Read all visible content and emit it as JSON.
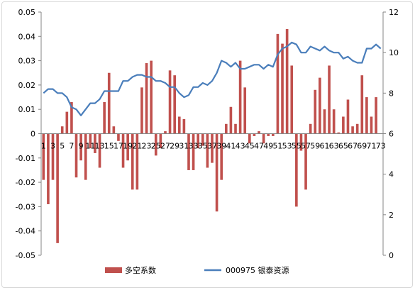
{
  "chart_data": {
    "type": "bar+line",
    "title": "",
    "x": [
      1,
      2,
      3,
      4,
      5,
      6,
      7,
      8,
      9,
      10,
      11,
      12,
      13,
      14,
      15,
      16,
      17,
      18,
      19,
      20,
      21,
      22,
      23,
      24,
      25,
      26,
      27,
      28,
      29,
      30,
      31,
      32,
      33,
      34,
      35,
      36,
      37,
      38,
      39,
      40,
      41,
      42,
      43,
      44,
      45,
      46,
      47,
      48,
      49,
      50,
      51,
      52,
      53,
      54,
      55,
      56,
      57,
      58,
      59,
      60,
      61,
      62,
      63,
      64,
      65,
      66,
      67,
      68,
      69,
      70,
      71,
      72,
      73
    ],
    "x_tick_labels": [
      "1",
      "3",
      "5",
      "7",
      "9",
      "11",
      "13",
      "15",
      "17",
      "19",
      "21",
      "23",
      "25",
      "27",
      "29",
      "31",
      "33",
      "35",
      "37",
      "39",
      "41",
      "43",
      "45",
      "47",
      "49",
      "51",
      "53",
      "55",
      "57",
      "59",
      "61",
      "63",
      "65",
      "67",
      "69",
      "71",
      "73"
    ],
    "series": [
      {
        "name": "多空系数",
        "type": "bar",
        "axis": "left",
        "color": "#c0504d",
        "values": [
          -0.019,
          -0.029,
          -0.019,
          -0.045,
          0.003,
          0.009,
          0.013,
          -0.018,
          -0.011,
          -0.019,
          -0.006,
          -0.008,
          -0.014,
          0.013,
          0.025,
          0.003,
          -0.003,
          -0.014,
          -0.011,
          -0.023,
          -0.023,
          0.019,
          0.029,
          0.03,
          -0.009,
          -0.006,
          0.001,
          0.026,
          0.024,
          0.007,
          0.006,
          -0.015,
          -0.015,
          -0.006,
          -0.005,
          -0.014,
          -0.012,
          -0.032,
          -0.019,
          0.004,
          0.011,
          0.004,
          0.03,
          0.019,
          -0.004,
          -0.001,
          0.001,
          -0.004,
          -0.001,
          -0.001,
          0.041,
          0.037,
          0.043,
          0.028,
          -0.03,
          -0.007,
          -0.023,
          0.004,
          0.018,
          0.023,
          0.01,
          0.028,
          0.01,
          0.0005,
          0.007,
          0.014,
          0.003,
          0.004,
          0.024,
          0.015,
          0.007,
          0.015,
          0.0
        ]
      },
      {
        "name": "000975 银泰资源",
        "type": "line",
        "axis": "right",
        "color": "#4a7ebb",
        "values": [
          8.0,
          8.2,
          8.2,
          8.0,
          8.0,
          7.8,
          7.3,
          7.2,
          6.9,
          7.2,
          7.5,
          7.5,
          7.7,
          8.1,
          8.1,
          8.1,
          8.1,
          8.6,
          8.6,
          8.8,
          8.9,
          8.9,
          8.8,
          8.8,
          8.6,
          8.6,
          8.5,
          8.3,
          8.3,
          8.0,
          7.8,
          7.9,
          8.3,
          8.3,
          8.5,
          8.4,
          8.6,
          9.0,
          9.6,
          9.5,
          9.3,
          9.5,
          9.2,
          9.2,
          9.3,
          9.4,
          9.4,
          9.2,
          9.4,
          9.3,
          9.9,
          10.2,
          10.3,
          10.5,
          10.4,
          10.0,
          10.0,
          10.3,
          10.2,
          10.1,
          10.3,
          10.1,
          10.0,
          10.0,
          9.7,
          9.8,
          9.6,
          9.5,
          9.5,
          10.2,
          10.2,
          10.4,
          10.2
        ]
      }
    ],
    "y_left": {
      "min": -0.05,
      "max": 0.05,
      "ticks": [
        "0.05",
        "0.04",
        "0.03",
        "0.02",
        "0.01",
        "0",
        "-0.01",
        "-0.02",
        "-0.03",
        "-0.04",
        "-0.05"
      ]
    },
    "y_right": {
      "min": 0,
      "max": 12,
      "ticks": [
        "12",
        "10",
        "8",
        "6",
        "4",
        "2",
        "0"
      ]
    },
    "legend": {
      "position": "bottom",
      "items": [
        "多空系数",
        "000975 银泰资源"
      ]
    },
    "grid": false
  }
}
